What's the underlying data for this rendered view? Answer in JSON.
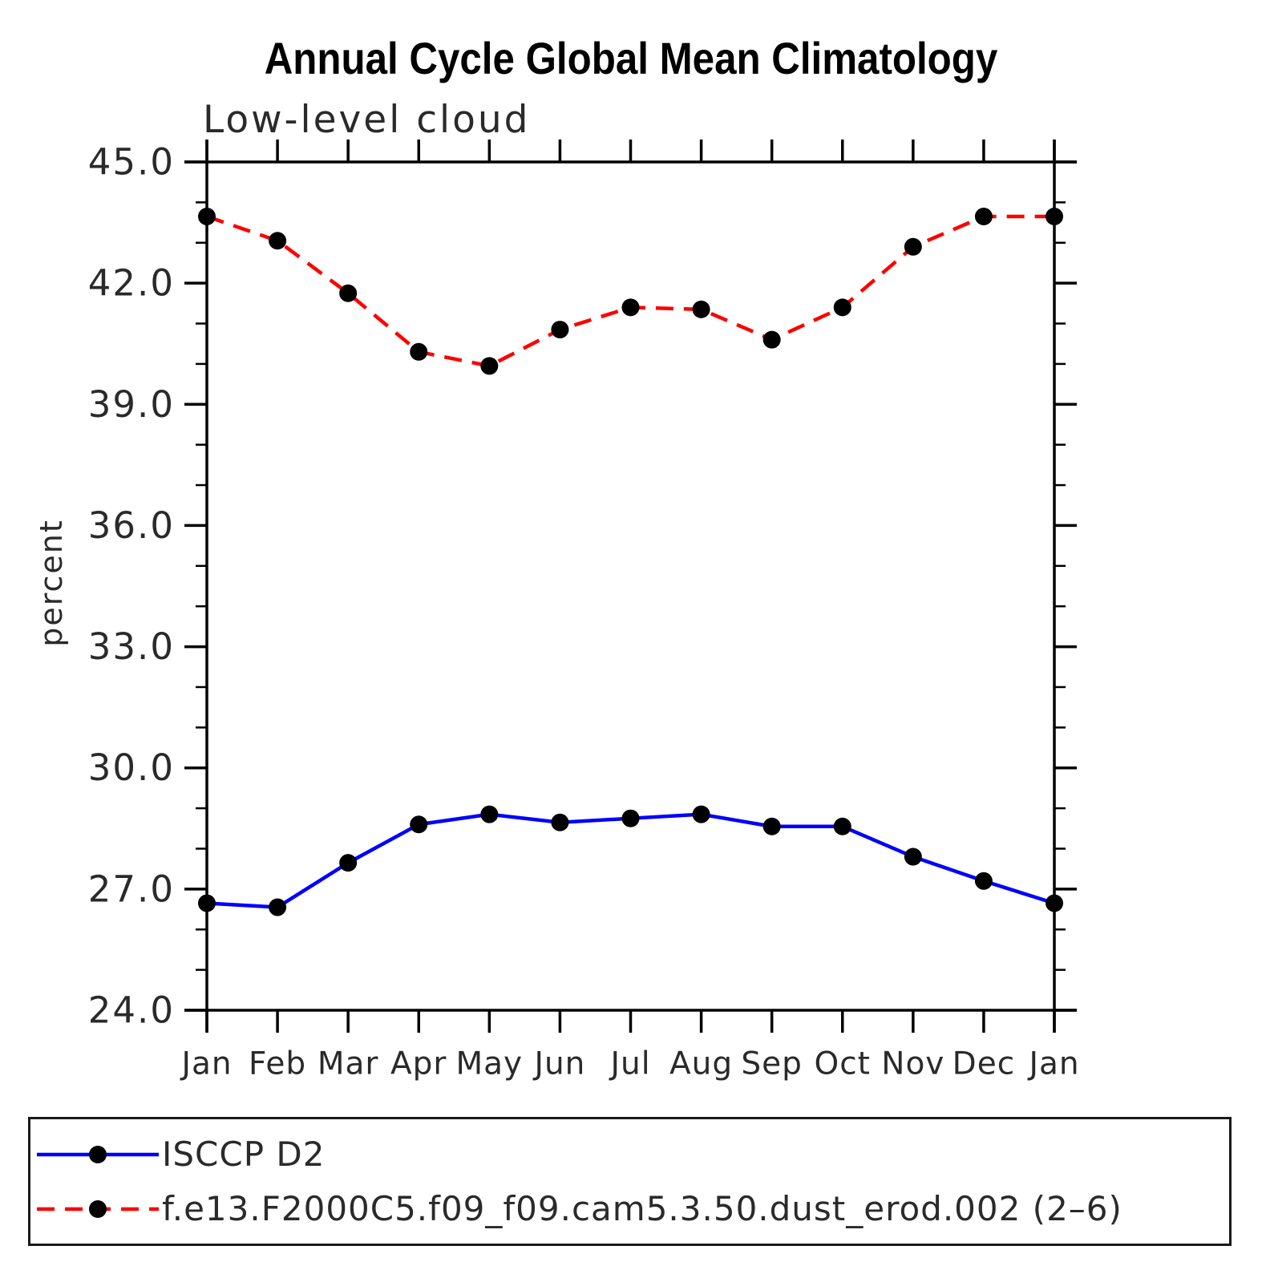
{
  "page": {
    "background": "#ffffff"
  },
  "chart_data": {
    "type": "line",
    "title": "Annual Cycle Global Mean Climatology",
    "subtitle": "Low-level cloud",
    "ylabel": "percent",
    "xlabel": "",
    "ylim": [
      24.0,
      45.0
    ],
    "ytick_major": [
      24,
      27,
      30,
      33,
      36,
      39,
      42,
      45
    ],
    "ytick_labels": [
      "24.0",
      "27.0",
      "30.0",
      "33.0",
      "36.0",
      "39.0",
      "42.0",
      "45.0"
    ],
    "ytick_minor_interval": 1,
    "categories": [
      "Jan",
      "Feb",
      "Mar",
      "Apr",
      "May",
      "Jun",
      "Jul",
      "Aug",
      "Sep",
      "Oct",
      "Nov",
      "Dec",
      "Jan"
    ],
    "grid": false,
    "legend_position": "bottom-left-box",
    "marker": "filled-circle",
    "marker_color": "#000000",
    "axis_color": "#000000",
    "series": [
      {
        "name": "ISCCP D2",
        "color": "#0000ff",
        "line_style": "solid",
        "values": [
          26.65,
          26.55,
          27.65,
          28.6,
          28.85,
          28.65,
          28.75,
          28.85,
          28.55,
          28.55,
          27.8,
          27.2,
          26.65
        ]
      },
      {
        "name": "f.e13.F2000C5.f09_f09.cam5.3.50.dust_erod.002 (2–6)",
        "color": "#ff0000",
        "line_style": "dashed",
        "values": [
          43.65,
          43.05,
          41.75,
          40.3,
          39.95,
          40.85,
          41.4,
          41.35,
          40.6,
          41.4,
          42.9,
          43.65,
          43.65
        ]
      }
    ]
  }
}
